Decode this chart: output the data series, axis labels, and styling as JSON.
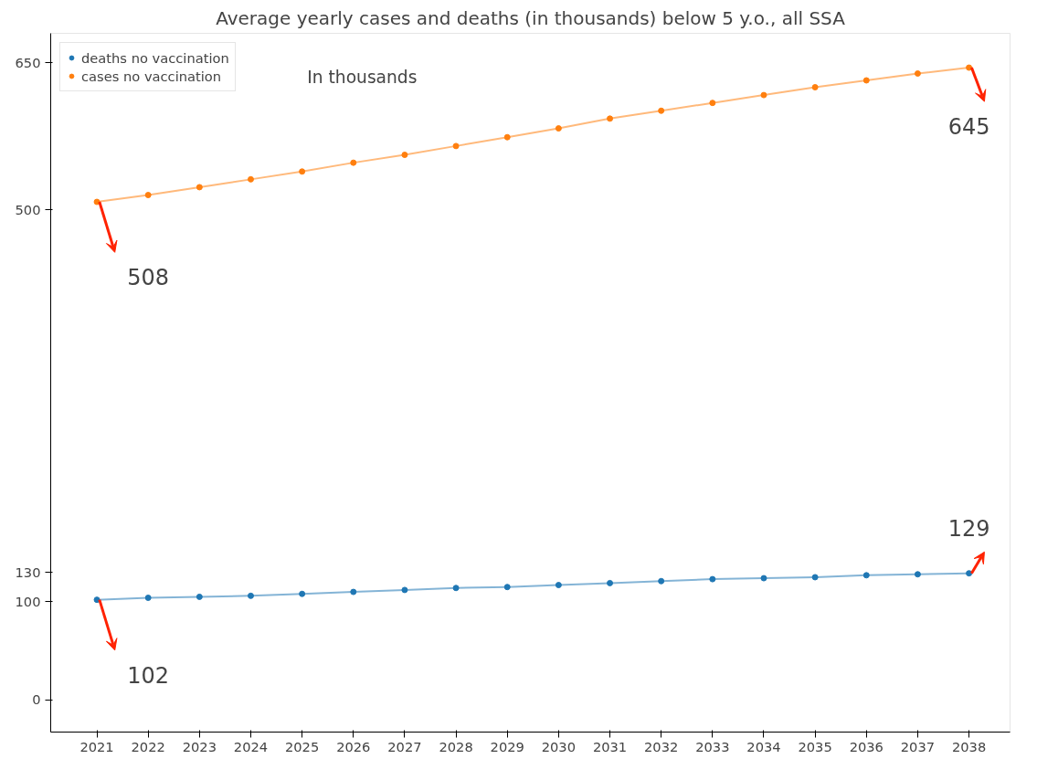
{
  "chart_data": {
    "type": "line",
    "title": "Average yearly cases and deaths (in thousands) below 5 y.o., all SSA",
    "x": [
      2021,
      2022,
      2023,
      2024,
      2025,
      2026,
      2027,
      2028,
      2029,
      2030,
      2031,
      2032,
      2033,
      2034,
      2035,
      2036,
      2037,
      2038
    ],
    "series": [
      {
        "name": "deaths no vaccination",
        "color": "#1f77b4",
        "values": [
          102,
          104,
          105,
          106,
          108,
          110,
          112,
          114,
          115,
          117,
          119,
          121,
          123,
          124,
          125,
          127,
          128,
          129
        ],
        "value_labels": [
          "102",
          null,
          null,
          null,
          null,
          null,
          null,
          null,
          null,
          null,
          null,
          null,
          null,
          null,
          null,
          null,
          null,
          "129"
        ]
      },
      {
        "name": "cases no vaccination",
        "color": "#ff7f0e",
        "values": [
          508,
          515,
          523,
          531,
          539,
          548,
          556,
          565,
          574,
          583,
          593,
          601,
          609,
          617,
          625,
          632,
          639,
          645
        ],
        "value_labels": [
          "508",
          null,
          null,
          null,
          null,
          null,
          null,
          null,
          null,
          null,
          null,
          null,
          null,
          null,
          null,
          null,
          null,
          "645"
        ]
      }
    ],
    "annotations": [
      "In thousands"
    ],
    "xlim": [
      2020.1,
      2038.8
    ],
    "ylim": [
      -33,
      680
    ],
    "xticks": [
      2021,
      2022,
      2023,
      2024,
      2025,
      2026,
      2027,
      2028,
      2029,
      2030,
      2031,
      2032,
      2033,
      2034,
      2035,
      2036,
      2037,
      2038
    ],
    "yticks": [
      0,
      100,
      130,
      500,
      650
    ],
    "marker": "circle",
    "line_style": "solid",
    "legend": "top left",
    "grid": false
  }
}
